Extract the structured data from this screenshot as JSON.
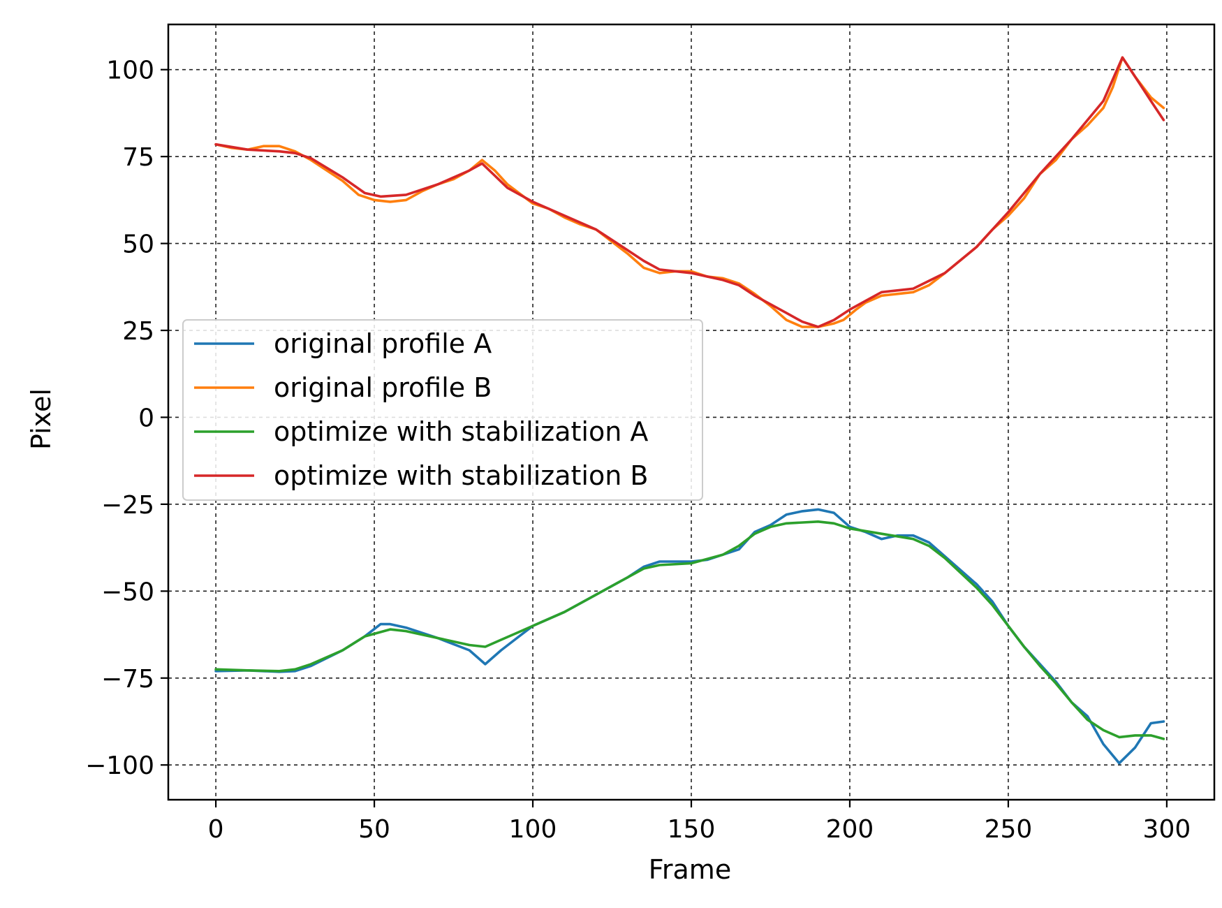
{
  "chart_data": {
    "type": "line",
    "title": "",
    "xlabel": "Frame",
    "ylabel": "Pixel",
    "xlim": [
      -15,
      315
    ],
    "ylim": [
      -110,
      113
    ],
    "x_ticks": [
      0,
      50,
      100,
      150,
      200,
      250,
      300
    ],
    "y_ticks": [
      100,
      75,
      50,
      25,
      0,
      -25,
      -50,
      -75,
      -100
    ],
    "x_tick_labels": [
      "0",
      "50",
      "100",
      "150",
      "200",
      "250",
      "300"
    ],
    "y_tick_labels": [
      "100",
      "75",
      "50",
      "25",
      "0",
      "−25",
      "−50",
      "−75",
      "−100"
    ],
    "grid": true,
    "grid_style": "dashed",
    "legend_position": "center-left",
    "series": [
      {
        "name": "original profile A",
        "color": "#1f77b4",
        "points": [
          [
            0,
            -73
          ],
          [
            10,
            -72.8
          ],
          [
            20,
            -73.2
          ],
          [
            25,
            -73
          ],
          [
            30,
            -71.5
          ],
          [
            40,
            -67
          ],
          [
            47,
            -63
          ],
          [
            52,
            -59.5
          ],
          [
            55,
            -59.5
          ],
          [
            60,
            -60.5
          ],
          [
            70,
            -63.5
          ],
          [
            80,
            -67
          ],
          [
            85,
            -71
          ],
          [
            90,
            -67
          ],
          [
            95,
            -63.5
          ],
          [
            100,
            -60
          ],
          [
            110,
            -56
          ],
          [
            120,
            -51
          ],
          [
            130,
            -46
          ],
          [
            135,
            -43
          ],
          [
            140,
            -41.5
          ],
          [
            145,
            -41.5
          ],
          [
            150,
            -41.5
          ],
          [
            155,
            -41
          ],
          [
            160,
            -39.5
          ],
          [
            165,
            -38
          ],
          [
            170,
            -33
          ],
          [
            175,
            -31
          ],
          [
            180,
            -28
          ],
          [
            185,
            -27
          ],
          [
            190,
            -26.5
          ],
          [
            195,
            -27.5
          ],
          [
            200,
            -31.5
          ],
          [
            205,
            -33
          ],
          [
            210,
            -35
          ],
          [
            215,
            -34
          ],
          [
            220,
            -34
          ],
          [
            225,
            -36
          ],
          [
            230,
            -40
          ],
          [
            240,
            -48
          ],
          [
            245,
            -53
          ],
          [
            250,
            -60
          ],
          [
            255,
            -66
          ],
          [
            260,
            -71
          ],
          [
            265,
            -76
          ],
          [
            270,
            -82
          ],
          [
            275,
            -86
          ],
          [
            280,
            -94
          ],
          [
            285,
            -99.5
          ],
          [
            290,
            -95
          ],
          [
            295,
            -88
          ],
          [
            299,
            -87.5
          ]
        ]
      },
      {
        "name": "original profile B",
        "color": "#ff7f0e",
        "points": [
          [
            0,
            78.5
          ],
          [
            5,
            77.5
          ],
          [
            10,
            77
          ],
          [
            15,
            78
          ],
          [
            20,
            78
          ],
          [
            25,
            76.5
          ],
          [
            30,
            74
          ],
          [
            40,
            68
          ],
          [
            45,
            64
          ],
          [
            50,
            62.5
          ],
          [
            55,
            62
          ],
          [
            60,
            62.5
          ],
          [
            65,
            65
          ],
          [
            70,
            67
          ],
          [
            75,
            68.5
          ],
          [
            80,
            71
          ],
          [
            84,
            74
          ],
          [
            88,
            71
          ],
          [
            92,
            67
          ],
          [
            100,
            61.5
          ],
          [
            105,
            60
          ],
          [
            110,
            57.5
          ],
          [
            115,
            55.5
          ],
          [
            120,
            54
          ],
          [
            130,
            47
          ],
          [
            135,
            43
          ],
          [
            140,
            41.5
          ],
          [
            145,
            42
          ],
          [
            150,
            42
          ],
          [
            155,
            40.5
          ],
          [
            160,
            40
          ],
          [
            165,
            38.5
          ],
          [
            170,
            35.5
          ],
          [
            175,
            32
          ],
          [
            180,
            28
          ],
          [
            185,
            26
          ],
          [
            190,
            26
          ],
          [
            195,
            27
          ],
          [
            198,
            28
          ],
          [
            202,
            31
          ],
          [
            205,
            33
          ],
          [
            210,
            35
          ],
          [
            215,
            35.5
          ],
          [
            220,
            36
          ],
          [
            225,
            38
          ],
          [
            230,
            41.5
          ],
          [
            240,
            49
          ],
          [
            245,
            54
          ],
          [
            250,
            58
          ],
          [
            255,
            63
          ],
          [
            260,
            70
          ],
          [
            265,
            74
          ],
          [
            270,
            80
          ],
          [
            275,
            84
          ],
          [
            280,
            89
          ],
          [
            283,
            95
          ],
          [
            286,
            103.5
          ],
          [
            290,
            98
          ],
          [
            295,
            92
          ],
          [
            299,
            89
          ]
        ]
      },
      {
        "name": "optimize with stabilization A",
        "color": "#2ca02c",
        "points": [
          [
            0,
            -72.5
          ],
          [
            10,
            -72.8
          ],
          [
            20,
            -73
          ],
          [
            25,
            -72.5
          ],
          [
            30,
            -71
          ],
          [
            40,
            -67
          ],
          [
            47,
            -63
          ],
          [
            55,
            -61
          ],
          [
            60,
            -61.5
          ],
          [
            70,
            -63.5
          ],
          [
            80,
            -65.5
          ],
          [
            85,
            -66
          ],
          [
            90,
            -64
          ],
          [
            95,
            -62
          ],
          [
            100,
            -60
          ],
          [
            110,
            -56
          ],
          [
            120,
            -51
          ],
          [
            130,
            -46
          ],
          [
            135,
            -43.5
          ],
          [
            140,
            -42.5
          ],
          [
            150,
            -42
          ],
          [
            160,
            -39.5
          ],
          [
            165,
            -37
          ],
          [
            170,
            -33.5
          ],
          [
            175,
            -31.5
          ],
          [
            180,
            -30.5
          ],
          [
            190,
            -30
          ],
          [
            195,
            -30.5
          ],
          [
            200,
            -32
          ],
          [
            210,
            -33.5
          ],
          [
            220,
            -35
          ],
          [
            225,
            -37
          ],
          [
            230,
            -40.5
          ],
          [
            240,
            -49
          ],
          [
            245,
            -54
          ],
          [
            250,
            -60
          ],
          [
            255,
            -66
          ],
          [
            260,
            -71.5
          ],
          [
            265,
            -76.5
          ],
          [
            270,
            -82
          ],
          [
            275,
            -87
          ],
          [
            280,
            -90
          ],
          [
            285,
            -92
          ],
          [
            290,
            -91.5
          ],
          [
            295,
            -91.5
          ],
          [
            299,
            -92.5
          ]
        ]
      },
      {
        "name": "optimize with stabilization B",
        "color": "#d62728",
        "points": [
          [
            0,
            78.5
          ],
          [
            10,
            77
          ],
          [
            20,
            76.5
          ],
          [
            25,
            76
          ],
          [
            30,
            74.5
          ],
          [
            40,
            69
          ],
          [
            47,
            64.5
          ],
          [
            52,
            63.5
          ],
          [
            60,
            64
          ],
          [
            70,
            67
          ],
          [
            80,
            71
          ],
          [
            84,
            73
          ],
          [
            88,
            69.5
          ],
          [
            92,
            66
          ],
          [
            100,
            62
          ],
          [
            110,
            58
          ],
          [
            120,
            54
          ],
          [
            130,
            48
          ],
          [
            135,
            45
          ],
          [
            140,
            42.5
          ],
          [
            150,
            41.5
          ],
          [
            160,
            39.5
          ],
          [
            165,
            38
          ],
          [
            170,
            35
          ],
          [
            180,
            30
          ],
          [
            185,
            27.5
          ],
          [
            190,
            26
          ],
          [
            195,
            28
          ],
          [
            200,
            31
          ],
          [
            205,
            33.5
          ],
          [
            210,
            36
          ],
          [
            220,
            37
          ],
          [
            230,
            41.5
          ],
          [
            240,
            49
          ],
          [
            250,
            59
          ],
          [
            260,
            70
          ],
          [
            270,
            80
          ],
          [
            280,
            91
          ],
          [
            286,
            103.5
          ],
          [
            290,
            98
          ],
          [
            295,
            91
          ],
          [
            299,
            85.5
          ]
        ]
      }
    ]
  }
}
